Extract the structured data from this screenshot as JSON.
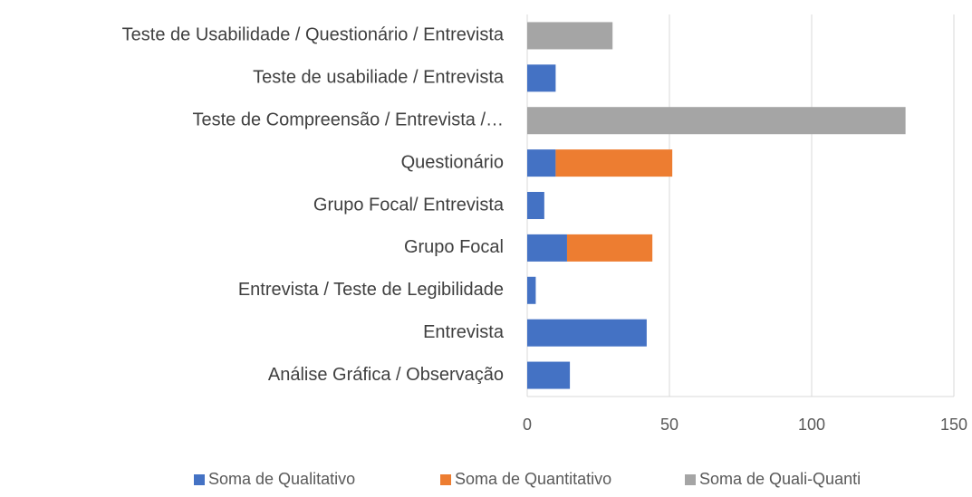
{
  "chart_data": {
    "type": "stacked-barh",
    "categories": [
      "Teste de Usabilidade / Questionário / Entrevista",
      "Teste de usabiliade / Entrevista",
      "Teste de Compreensão / Entrevista /…",
      "Questionário",
      "Grupo Focal/ Entrevista",
      "Grupo Focal",
      "Entrevista / Teste de Legibilidade",
      "Entrevista",
      "Análise Gráfica / Observação"
    ],
    "series": [
      {
        "name": "Soma de Qualitativo",
        "color": "#4472c4",
        "values": [
          null,
          10,
          null,
          10,
          6,
          14,
          3,
          42,
          15
        ]
      },
      {
        "name": "Soma de Quantitativo",
        "color": "#ed7d31",
        "values": [
          null,
          null,
          null,
          41,
          null,
          30,
          null,
          null,
          null
        ]
      },
      {
        "name": "Soma de Quali-Quanti",
        "color": "#a5a5a5",
        "values": [
          30,
          null,
          133,
          null,
          null,
          null,
          null,
          null,
          null
        ]
      }
    ],
    "xlim": [
      0,
      150
    ],
    "xticks": [
      0,
      50,
      100,
      150
    ],
    "grid": true,
    "legend": "bottom"
  }
}
